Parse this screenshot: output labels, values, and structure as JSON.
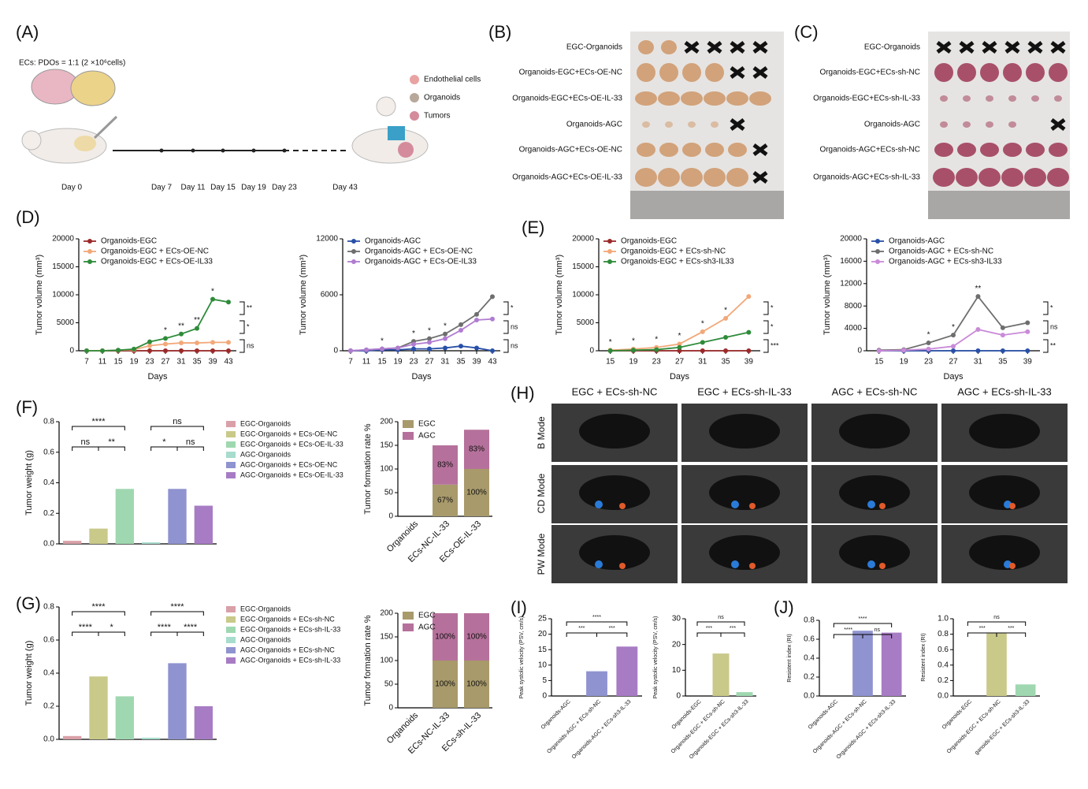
{
  "panel_labels": [
    "(A)",
    "(B)",
    "(C)",
    "(D)",
    "(E)",
    "(F)",
    "(G)",
    "(H)",
    "(I)",
    "(J)"
  ],
  "panel_a": {
    "ratio": "ECs: PDOs = 1:1 (2 ×10⁶cells)",
    "legend": [
      "Endothelial cells",
      "Organoids",
      "Tumors"
    ],
    "days": [
      "Day 0",
      "Day 7",
      "Day 11",
      "Day 15",
      "Day 19",
      "Day 23",
      "Day 43"
    ]
  },
  "panel_b": {
    "rows": [
      "EGC-Organoids",
      "Organoids-EGC+ECs-OE-NC",
      "Organoids-EGC+ECs-OE-IL-33",
      "Organoids-AGC",
      "Organoids-AGC+ECs-OE-NC",
      "Organoids-AGC+ECs-OE-IL-33"
    ]
  },
  "panel_c": {
    "rows": [
      "EGC-Organoids",
      "Organoids-EGC+ECs-sh-NC",
      "Organoids-EGC+ECs-sh-IL-33",
      "Organoids-AGC",
      "Organoids-AGC+ECs-sh-NC",
      "Organoids-AGC+ECs-sh-IL-33"
    ]
  },
  "panel_h": {
    "columns": [
      "EGC + ECs-sh-NC",
      "EGC + ECs-sh-IL-33",
      "AGC + ECs-sh-NC",
      "AGC + ECs-sh-IL-33"
    ],
    "rows": [
      "B Mode",
      "CD Mode",
      "PW Mode"
    ]
  },
  "chart_data": [
    {
      "type": "line",
      "xlabel": "Days",
      "ylabel": "Tumor volume (mm³)",
      "x": [
        7,
        11,
        15,
        19,
        23,
        27,
        31,
        35,
        39,
        43
      ],
      "xlim": [
        5,
        45
      ],
      "xticks": [
        7,
        11,
        15,
        19,
        23,
        27,
        31,
        35,
        39,
        43
      ],
      "ylim": [
        0,
        20000
      ],
      "yticks": [
        0,
        5000,
        10000,
        15000,
        20000
      ],
      "series": [
        {
          "name": "Organoids-EGC",
          "color": "#9b2a2a",
          "values": [
            0,
            0,
            0,
            0,
            0,
            0,
            0,
            0,
            0,
            0
          ]
        },
        {
          "name": "Organoids-EGC + ECs-OE-NC",
          "color": "#f2a878",
          "values": [
            0,
            0,
            100,
            200,
            900,
            1200,
            1400,
            1400,
            1500,
            1500
          ]
        },
        {
          "name": "Organoids-EGC + ECs-OE-IL33",
          "color": "#2e8b3a",
          "values": [
            0,
            0,
            100,
            300,
            1600,
            2200,
            3000,
            4000,
            9200,
            8700
          ]
        }
      ],
      "annotations": [
        {
          "text": "*",
          "x": 27
        },
        {
          "text": "**",
          "x": 31
        },
        {
          "text": "**",
          "x": 35
        },
        {
          "text": "*",
          "x": 39
        }
      ],
      "side_marks": [
        "ns",
        "*",
        "**"
      ]
    },
    {
      "type": "line",
      "xlabel": "Days",
      "ylabel": "Tumor volume (mm³)",
      "x": [
        7,
        11,
        15,
        19,
        23,
        27,
        31,
        35,
        39,
        43
      ],
      "xlim": [
        5,
        45
      ],
      "xticks": [
        7,
        11,
        15,
        19,
        23,
        27,
        31,
        35,
        39,
        43
      ],
      "ylim": [
        0,
        12000
      ],
      "yticks": [
        0,
        6000,
        12000
      ],
      "series": [
        {
          "name": "Organoids-AGC",
          "color": "#2850a8",
          "values": [
            0,
            0,
            100,
            100,
            200,
            200,
            300,
            500,
            300,
            0
          ]
        },
        {
          "name": "Organoids-AGC + ECs-OE-NC",
          "color": "#6e6e6e",
          "values": [
            0,
            100,
            200,
            300,
            1000,
            1300,
            1800,
            2800,
            3900,
            5800
          ]
        },
        {
          "name": "Organoids-AGC + ECs-OE-IL33",
          "color": "#b07cd0",
          "values": [
            0,
            100,
            200,
            300,
            700,
            900,
            1300,
            2200,
            3300,
            3400
          ]
        }
      ],
      "annotations": [
        {
          "text": "*",
          "x": 15
        },
        {
          "text": "*",
          "x": 23
        },
        {
          "text": "*",
          "x": 27
        },
        {
          "text": "*",
          "x": 31
        }
      ],
      "side_marks": [
        "ns",
        "ns",
        "*"
      ]
    },
    {
      "type": "line",
      "xlabel": "Days",
      "ylabel": "Tumor volume (mm³)",
      "x": [
        15,
        19,
        23,
        27,
        31,
        35,
        39
      ],
      "xlim": [
        13,
        41
      ],
      "xticks": [
        15,
        19,
        23,
        27,
        31,
        35,
        39
      ],
      "ylim": [
        0,
        20000
      ],
      "yticks": [
        0,
        5000,
        10000,
        15000,
        20000
      ],
      "series": [
        {
          "name": "Organoids-EGC",
          "color": "#9b2a2a",
          "values": [
            0,
            0,
            0,
            0,
            0,
            0,
            0
          ]
        },
        {
          "name": "Organoids-EGC + ECs-sh-NC",
          "color": "#f2a878",
          "values": [
            100,
            300,
            600,
            1200,
            3400,
            5800,
            9700
          ]
        },
        {
          "name": "Organoids-EGC + ECs-sh3-IL33",
          "color": "#2e8b3a",
          "values": [
            0,
            100,
            200,
            600,
            1500,
            2400,
            3300
          ]
        }
      ],
      "annotations": [
        {
          "text": "*",
          "x": 15
        },
        {
          "text": "*",
          "x": 19
        },
        {
          "text": "*",
          "x": 23
        },
        {
          "text": "*",
          "x": 27
        },
        {
          "text": "*",
          "x": 31
        },
        {
          "text": "*",
          "x": 35
        }
      ],
      "side_marks": [
        "***",
        "*",
        "*"
      ]
    },
    {
      "type": "line",
      "xlabel": "Days",
      "ylabel": "Tumor volume (mm³)",
      "x": [
        15,
        19,
        23,
        27,
        31,
        35,
        39
      ],
      "xlim": [
        13,
        41
      ],
      "xticks": [
        15,
        19,
        23,
        27,
        31,
        35,
        39
      ],
      "ylim": [
        0,
        20000
      ],
      "yticks": [
        0,
        4000,
        8000,
        12000,
        16000,
        20000
      ],
      "series": [
        {
          "name": "Organoids-AGC",
          "color": "#2850a8",
          "values": [
            0,
            0,
            0,
            0,
            0,
            0,
            0
          ]
        },
        {
          "name": "Organoids-AGC + ECs-sh-NC",
          "color": "#6e6e6e",
          "values": [
            100,
            200,
            1400,
            2800,
            9700,
            4100,
            5000
          ]
        },
        {
          "name": "Organoids-AGC + ECs-sh3-IL33",
          "color": "#c98ad8",
          "values": [
            0,
            100,
            300,
            800,
            3800,
            2800,
            3400
          ]
        }
      ],
      "annotations": [
        {
          "text": "*",
          "x": 23
        },
        {
          "text": "*",
          "x": 27
        },
        {
          "text": "**",
          "x": 31
        }
      ],
      "side_marks": [
        "**",
        "ns",
        "*"
      ]
    },
    {
      "type": "bar",
      "category_labels": "legend",
      "ylabel": "Tumor weight (g)",
      "categories": [
        "EGC-Organoids",
        "EGC-Organoids + ECs-OE-NC",
        "EGC-Organoids + ECs-OE-IL-33",
        "AGC-Organoids",
        "AGC-Organoids + ECs-OE-NC",
        "AGC-Organoids + ECs-OE-IL-33"
      ],
      "colors": [
        "#d9a0a8",
        "#c9c98a",
        "#9fd8b0",
        "#a8dccd",
        "#8f93cf",
        "#a77cc4"
      ],
      "values": [
        0.02,
        0.1,
        0.36,
        0.01,
        0.36,
        0.25
      ],
      "ylim": [
        0,
        0.8
      ],
      "yticks": [
        {
          "value": 0,
          "label": "0.0"
        },
        0.2,
        0.4,
        0.6,
        0.8
      ],
      "brackets": [
        {
          "text": "ns",
          "from": 0,
          "to": 1
        },
        {
          "text": "**",
          "from": 1,
          "to": 2
        },
        {
          "text": "****",
          "from": 0,
          "to": 2
        },
        {
          "text": "*",
          "from": 3,
          "to": 4
        },
        {
          "text": "ns",
          "from": 4,
          "to": 5
        },
        {
          "text": "ns",
          "from": 3,
          "to": 5
        }
      ]
    },
    {
      "type": "stacked_bar",
      "ylabel": "Tumor formation rate %",
      "categories": [
        "Organoids",
        "ECs-NC-IL-33",
        "ECs-OE-IL-33"
      ],
      "ylim": [
        0,
        200
      ],
      "yticks": [
        0,
        50,
        100,
        150,
        200
      ],
      "series": [
        {
          "name": "EGC",
          "color": "#a89a6b",
          "values": [
            0,
            67,
            100
          ],
          "value_labels": [
            null,
            "67%",
            "100%"
          ]
        },
        {
          "name": "AGC",
          "color": "#b5719b",
          "values": [
            0,
            83,
            83
          ],
          "value_labels": [
            null,
            "83%",
            "83%"
          ]
        }
      ]
    },
    {
      "type": "bar",
      "category_labels": "legend",
      "ylabel": "Tumor weight (g)",
      "categories": [
        "EGC-Organoids",
        "EGC-Organoids + ECs-sh-NC",
        "EGC-Organoids + ECs-sh-IL-33",
        "AGC-Organoids",
        "AGC-Organoids + ECs-sh-NC",
        "AGC-Organoids + ECs-sh-IL-33"
      ],
      "colors": [
        "#d9a0a8",
        "#c9c98a",
        "#9fd8b0",
        "#a8dccd",
        "#8f93cf",
        "#a77cc4"
      ],
      "values": [
        0.02,
        0.38,
        0.26,
        0.01,
        0.46,
        0.2
      ],
      "ylim": [
        0,
        0.8
      ],
      "yticks": [
        {
          "value": 0,
          "label": "0.0"
        },
        0.2,
        0.4,
        0.6,
        0.8
      ],
      "brackets": [
        {
          "text": "****",
          "from": 0,
          "to": 1
        },
        {
          "text": "*",
          "from": 1,
          "to": 2
        },
        {
          "text": "****",
          "from": 0,
          "to": 2
        },
        {
          "text": "****",
          "from": 3,
          "to": 4
        },
        {
          "text": "****",
          "from": 4,
          "to": 5
        },
        {
          "text": "****",
          "from": 3,
          "to": 5
        }
      ]
    },
    {
      "type": "stacked_bar",
      "ylabel": "Tumor formation rate %",
      "categories": [
        "Organoids",
        "ECs-NC-IL-33",
        "ECs-sh-IL-33"
      ],
      "ylim": [
        0,
        200
      ],
      "yticks": [
        0,
        50,
        100,
        150,
        200
      ],
      "series": [
        {
          "name": "EGC",
          "color": "#a89a6b",
          "values": [
            0,
            100,
            100
          ],
          "value_labels": [
            null,
            "100%",
            "100%"
          ]
        },
        {
          "name": "AGC",
          "color": "#b5719b",
          "values": [
            0,
            100,
            100
          ],
          "value_labels": [
            null,
            "100%",
            "100%"
          ]
        }
      ]
    },
    {
      "type": "bar",
      "category_labels": "axis",
      "ylabel": "Peak systolic velocity (PSV, cm/s)",
      "categories": [
        "Organoids-AGC",
        "Organoids-AGC + ECs-sh-NC",
        "Organoids-AGC + ECs-sh3-IL-33"
      ],
      "colors": [
        "#bbbbbb",
        "#8f93cf",
        "#a77cc4"
      ],
      "values": [
        0,
        8,
        16
      ],
      "ylim": [
        0,
        25
      ],
      "yticks": [
        0,
        5,
        10,
        15,
        20,
        25
      ],
      "brackets": [
        {
          "text": "***",
          "from": 0,
          "to": 1
        },
        {
          "text": "***",
          "from": 1,
          "to": 2
        },
        {
          "text": "****",
          "from": 0,
          "to": 2
        }
      ]
    },
    {
      "type": "bar",
      "category_labels": "axis",
      "ylabel": "Peak systolic velocity (PSV, cm/s)",
      "categories": [
        "Organoids-EGC",
        "Organoids-EGC + ECs-sh-NC",
        "Organoids-EGC + ECs-sh3-IL-33"
      ],
      "colors": [
        "#bbbbbb",
        "#c9c98a",
        "#9fd8b0"
      ],
      "values": [
        0,
        16.5,
        1.5
      ],
      "ylim": [
        0,
        30
      ],
      "yticks": [
        0,
        10,
        20,
        30
      ],
      "brackets": [
        {
          "text": "***",
          "from": 0,
          "to": 1
        },
        {
          "text": "***",
          "from": 1,
          "to": 2
        },
        {
          "text": "ns",
          "from": 0,
          "to": 2
        }
      ]
    },
    {
      "type": "bar",
      "category_labels": "axis",
      "ylabel": "Resistent index (RI)",
      "categories": [
        "Organoids-AGC",
        "Organoids-AGC + ECs-sh-NC",
        "Organoids-AGC + ECs-sh3-IL-33"
      ],
      "colors": [
        "#bbbbbb",
        "#8f93cf",
        "#a77cc4"
      ],
      "values": [
        0,
        0.69,
        0.67
      ],
      "ylim": [
        0,
        0.8
      ],
      "yticks": [
        {
          "value": 0,
          "label": "0.0"
        },
        0.2,
        0.4,
        0.6,
        0.8
      ],
      "brackets": [
        {
          "text": "****",
          "from": 0,
          "to": 1
        },
        {
          "text": "ns",
          "from": 1,
          "to": 2
        },
        {
          "text": "****",
          "from": 0,
          "to": 2
        }
      ]
    },
    {
      "type": "bar",
      "category_labels": "axis",
      "ylabel": "Resistent index (RI)",
      "categories": [
        "Organoids-EGC",
        "Organoids-EGC + ECs-sh-NC",
        "ganoids-EGC + ECs-sh3-IL-33"
      ],
      "colors": [
        "#bbbbbb",
        "#c9c98a",
        "#9fd8b0"
      ],
      "values": [
        0,
        0.81,
        0.15
      ],
      "ylim": [
        0,
        1
      ],
      "yticks": [
        {
          "value": 0,
          "label": "0.0"
        },
        0.2,
        0.4,
        0.6,
        0.8,
        {
          "value": 1,
          "label": "1.0"
        }
      ],
      "brackets": [
        {
          "text": "***",
          "from": 0,
          "to": 1
        },
        {
          "text": "***",
          "from": 1,
          "to": 2
        },
        {
          "text": "ns",
          "from": 0,
          "to": 2
        }
      ]
    }
  ]
}
